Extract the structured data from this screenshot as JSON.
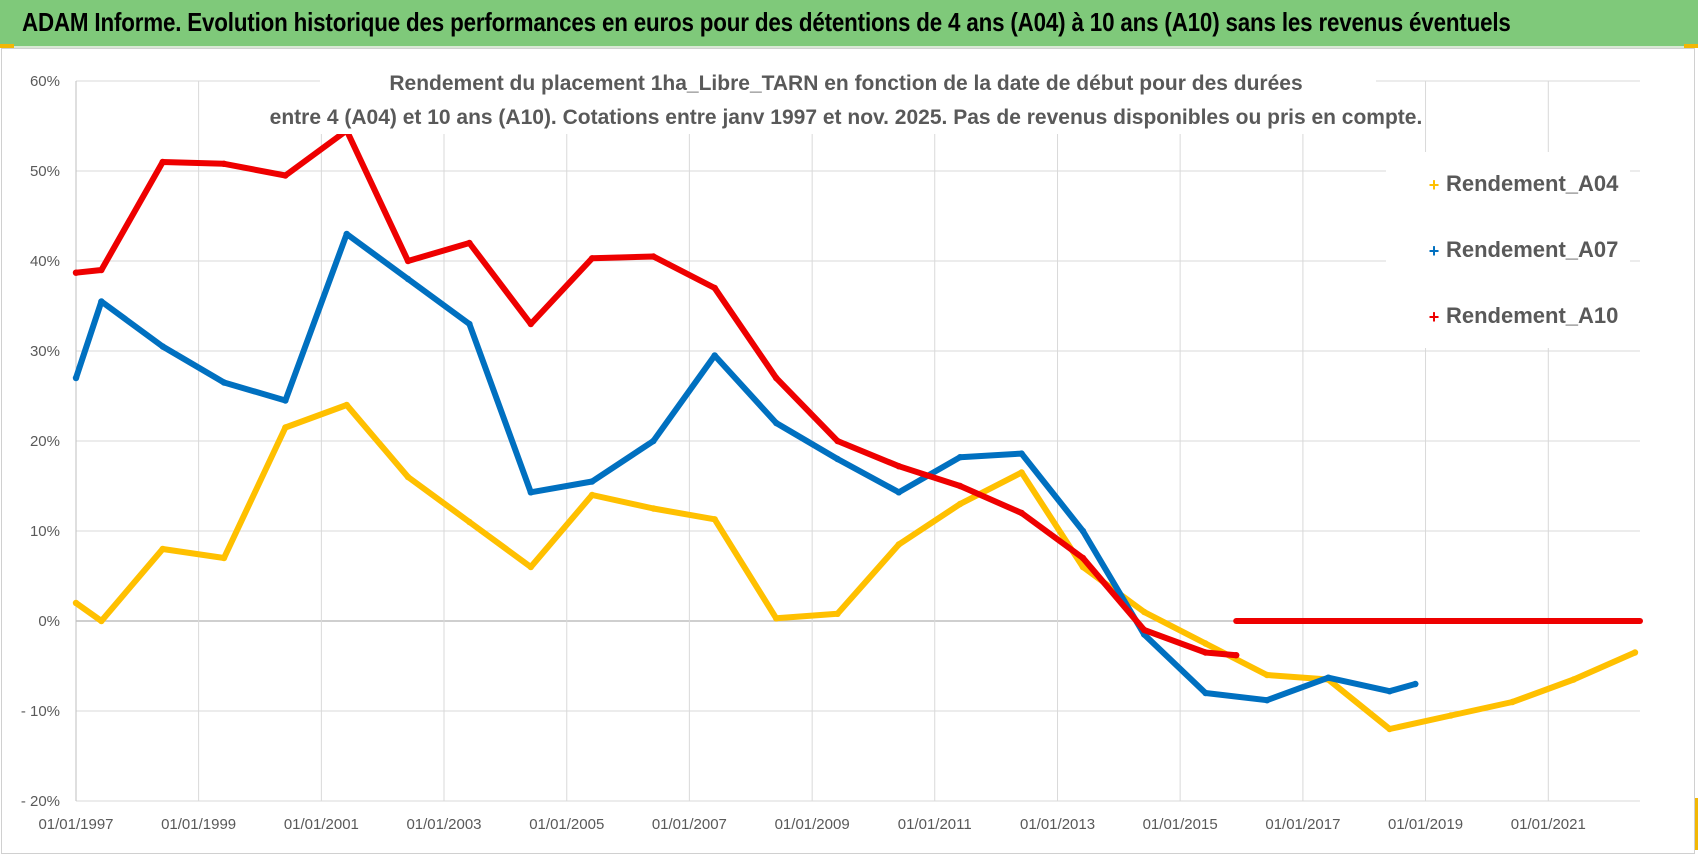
{
  "banner": {
    "title": "ADAM Informe. Evolution historique des performances en euros pour des détentions de 4 ans (A04) à 10 ans (A10) sans les revenus éventuels"
  },
  "colors": {
    "banner_bg": "#7fc97a",
    "A04": "#ffc000",
    "A07": "#0070c0",
    "A10": "#ee0000"
  },
  "chart_data": {
    "type": "line",
    "title_lines": [
      "Rendement du placement 1ha_Libre_TARN en fonction de la date de début pour des durées",
      "entre 4 (A04) et 10 ans (A10).  Cotations entre janv 1997 et nov. 2025. Pas de revenus disponibles ou pris en compte."
    ],
    "xlabel": "",
    "ylabel": "",
    "x_range": [
      "01/01/1997",
      "01/07/2022"
    ],
    "x_ticks": [
      "01/01/1997",
      "01/01/1999",
      "01/01/2001",
      "01/01/2003",
      "01/01/2005",
      "01/01/2007",
      "01/01/2009",
      "01/01/2011",
      "01/01/2013",
      "01/01/2015",
      "01/01/2017",
      "01/01/2019",
      "01/01/2021"
    ],
    "ylim": [
      -20,
      60
    ],
    "y_ticks": [
      {
        "value": 60,
        "label": "60%"
      },
      {
        "value": 50,
        "label": "50%"
      },
      {
        "value": 40,
        "label": "40%"
      },
      {
        "value": 30,
        "label": "30%"
      },
      {
        "value": 20,
        "label": "20%"
      },
      {
        "value": 10,
        "label": "10%"
      },
      {
        "value": 0,
        "label": "0%"
      },
      {
        "value": -10,
        "label": "- 10%"
      },
      {
        "value": -20,
        "label": "- 20%"
      }
    ],
    "grid": true,
    "legend_position": "right",
    "series": [
      {
        "name": "Rendement_A04",
        "color": "#ffc000",
        "points": [
          [
            "1997-01-01",
            2
          ],
          [
            "1997-06-01",
            0
          ],
          [
            "1998-06-01",
            8
          ],
          [
            "1999-06-01",
            7
          ],
          [
            "2000-06-01",
            21.5
          ],
          [
            "2001-06-01",
            24
          ],
          [
            "2002-06-01",
            16
          ],
          [
            "2003-06-01",
            11
          ],
          [
            "2004-06-01",
            6
          ],
          [
            "2005-06-01",
            14
          ],
          [
            "2006-06-01",
            12.5
          ],
          [
            "2007-06-01",
            11.3
          ],
          [
            "2008-06-01",
            0.3
          ],
          [
            "2009-06-01",
            0.8
          ],
          [
            "2010-06-01",
            8.5
          ],
          [
            "2011-06-01",
            13
          ],
          [
            "2012-06-01",
            16.5
          ],
          [
            "2013-06-01",
            6
          ],
          [
            "2014-06-01",
            1
          ],
          [
            "2015-06-01",
            -2.5
          ],
          [
            "2016-06-01",
            -6
          ],
          [
            "2017-06-01",
            -6.5
          ],
          [
            "2018-06-01",
            -12
          ],
          [
            "2019-06-01",
            -10.5
          ],
          [
            "2020-06-01",
            -9
          ],
          [
            "2021-06-01",
            -6.5
          ],
          [
            "2022-06-01",
            -3.5
          ]
        ]
      },
      {
        "name": "Rendement_A07",
        "color": "#0070c0",
        "points": [
          [
            "1997-01-01",
            27
          ],
          [
            "1997-06-01",
            35.5
          ],
          [
            "1998-06-01",
            30.5
          ],
          [
            "1999-06-01",
            26.5
          ],
          [
            "2000-06-01",
            24.5
          ],
          [
            "2001-06-01",
            43
          ],
          [
            "2002-06-01",
            38
          ],
          [
            "2003-06-01",
            33
          ],
          [
            "2004-06-01",
            14.3
          ],
          [
            "2005-06-01",
            15.5
          ],
          [
            "2006-06-01",
            20
          ],
          [
            "2007-06-01",
            29.5
          ],
          [
            "2008-06-01",
            22
          ],
          [
            "2009-06-01",
            18
          ],
          [
            "2010-06-01",
            14.3
          ],
          [
            "2011-06-01",
            18.2
          ],
          [
            "2012-06-01",
            18.6
          ],
          [
            "2013-06-01",
            10
          ],
          [
            "2014-06-01",
            -1.5
          ],
          [
            "2015-06-01",
            -8
          ],
          [
            "2016-06-01",
            -8.8
          ],
          [
            "2017-06-01",
            -6.3
          ],
          [
            "2018-06-01",
            -7.8
          ],
          [
            "2018-11-01",
            -7
          ]
        ]
      },
      {
        "name": "Rendement_A10",
        "color": "#ee0000",
        "points": [
          [
            "1997-01-01",
            38.7
          ],
          [
            "1997-06-01",
            39
          ],
          [
            "1998-06-01",
            51
          ],
          [
            "1999-06-01",
            50.8
          ],
          [
            "2000-06-01",
            49.5
          ],
          [
            "2001-06-01",
            54.5
          ],
          [
            "2002-06-01",
            40
          ],
          [
            "2003-06-01",
            42
          ],
          [
            "2004-06-01",
            33
          ],
          [
            "2005-06-01",
            40.3
          ],
          [
            "2006-06-01",
            40.5
          ],
          [
            "2007-06-01",
            37
          ],
          [
            "2008-06-01",
            27
          ],
          [
            "2009-06-01",
            20
          ],
          [
            "2010-06-01",
            17.2
          ],
          [
            "2011-06-01",
            15
          ],
          [
            "2012-06-01",
            12
          ],
          [
            "2013-06-01",
            7
          ],
          [
            "2014-06-01",
            -1
          ],
          [
            "2015-06-01",
            -3.5
          ],
          [
            "2015-12-01",
            -3.8
          ]
        ],
        "flat_segment": [
          [
            "2015-12-01",
            0
          ],
          [
            "2022-07-01",
            0
          ]
        ]
      }
    ]
  }
}
